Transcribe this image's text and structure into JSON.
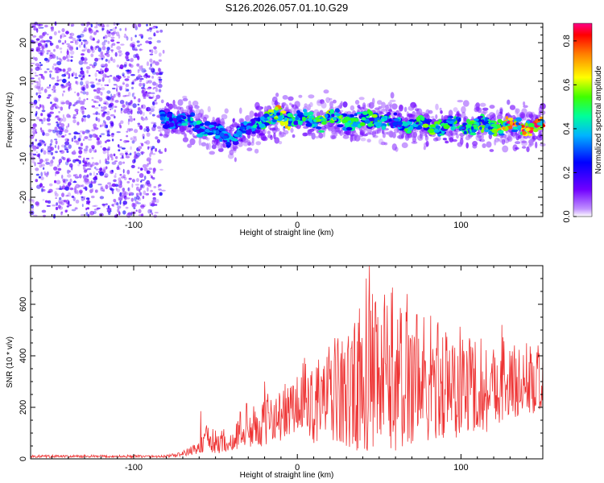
{
  "chart_data": [
    {
      "type": "heatmap",
      "title": "S126.2026.057.01.10.G29",
      "xlabel": "Height of straight line (km)",
      "ylabel": "Frequency (Hz)",
      "xlim": [
        -163,
        150
      ],
      "ylim": [
        -25,
        25
      ],
      "x_ticks": [
        -100,
        0,
        100
      ],
      "y_ticks": [
        -20,
        -10,
        0,
        10,
        20
      ],
      "grid": false,
      "colorbar": {
        "label": "Normalized spectral amplitude",
        "range": [
          0.0,
          0.88
        ],
        "ticks": [
          0.0,
          0.2,
          0.4,
          0.6,
          0.8
        ],
        "colormap": [
          "#ffffff",
          "#8000ff",
          "#0000ff",
          "#00d0ff",
          "#00ff80",
          "#40ff00",
          "#ffff00",
          "#ff8000",
          "#ff0000",
          "#ff0080"
        ]
      },
      "noise_region_x": [
        -163,
        -83
      ],
      "signal_band": {
        "x": [
          -83,
          -70,
          -60,
          -50,
          -40,
          -30,
          -20,
          -10,
          0,
          10,
          20,
          30,
          40,
          50,
          60,
          70,
          80,
          90,
          100,
          110,
          120,
          130,
          140,
          150
        ],
        "center_frequency": [
          0.5,
          0.2,
          -1.5,
          -3.5,
          -4.0,
          -2.5,
          0.5,
          0.8,
          0.3,
          -0.5,
          0.2,
          0.3,
          -0.5,
          0.5,
          -1.0,
          -1.5,
          -2.0,
          -1.5,
          -1.5,
          -1.5,
          -1.5,
          -1.6,
          -1.8,
          -1.7
        ],
        "amplitude": [
          0.35,
          0.4,
          0.4,
          0.35,
          0.35,
          0.35,
          0.45,
          0.65,
          0.45,
          0.45,
          0.6,
          0.45,
          0.45,
          0.5,
          0.4,
          0.45,
          0.5,
          0.45,
          0.45,
          0.5,
          0.55,
          0.8,
          0.85,
          0.75
        ]
      }
    },
    {
      "type": "line",
      "title": "",
      "xlabel": "Height of straight line (km)",
      "ylabel": "SNR (10 * v/v)",
      "xlim": [
        -163,
        150
      ],
      "ylim": [
        0,
        750
      ],
      "x_ticks": [
        -100,
        0,
        100
      ],
      "y_ticks": [
        0,
        200,
        400,
        600
      ],
      "grid": false,
      "color": "#ee3333",
      "series": [
        {
          "name": "SNR",
          "envelope_x": [
            -163,
            -100,
            -80,
            -70,
            -60,
            -55,
            -50,
            -45,
            -40,
            -35,
            -30,
            -25,
            -20,
            -15,
            -10,
            -5,
            0,
            5,
            10,
            15,
            20,
            25,
            30,
            35,
            40,
            45,
            50,
            55,
            60,
            65,
            70,
            75,
            80,
            85,
            90,
            95,
            100,
            105,
            110,
            115,
            120,
            125,
            130,
            135,
            140,
            145,
            150
          ],
          "envelope_low": [
            5,
            5,
            5,
            10,
            20,
            30,
            15,
            30,
            20,
            50,
            40,
            60,
            40,
            80,
            70,
            80,
            90,
            100,
            60,
            80,
            70,
            60,
            40,
            30,
            40,
            20,
            20,
            20,
            30,
            20,
            60,
            40,
            50,
            70,
            80,
            60,
            90,
            100,
            110,
            100,
            120,
            150,
            140,
            160,
            180,
            170,
            180
          ],
          "envelope_high": [
            15,
            15,
            15,
            30,
            70,
            140,
            110,
            120,
            90,
            200,
            180,
            220,
            230,
            300,
            260,
            330,
            340,
            400,
            380,
            450,
            440,
            500,
            470,
            560,
            620,
            640,
            600,
            700,
            620,
            610,
            640,
            600,
            580,
            560,
            540,
            540,
            520,
            520,
            500,
            480,
            470,
            500,
            460,
            450,
            460,
            440,
            430
          ],
          "peaks": [
            [
              -59,
              185
            ],
            [
              -31,
              215
            ],
            [
              -20,
              300
            ],
            [
              13,
              385
            ],
            [
              33,
              430
            ],
            [
              42,
              700
            ],
            [
              44,
              748
            ],
            [
              46,
              640
            ],
            [
              58,
              665
            ],
            [
              67,
              640
            ],
            [
              73,
              560
            ],
            [
              85,
              430
            ],
            [
              95,
              440
            ],
            [
              125,
              520
            ],
            [
              147,
              440
            ]
          ]
        }
      ]
    }
  ]
}
